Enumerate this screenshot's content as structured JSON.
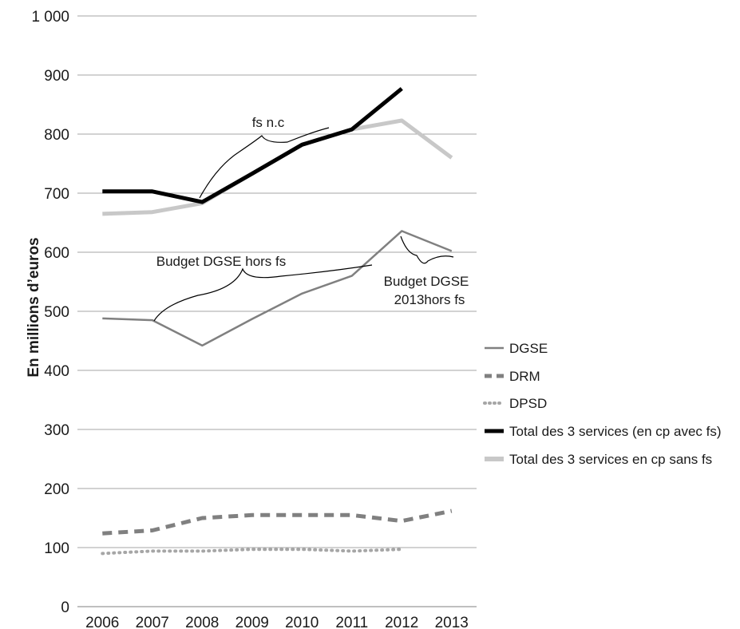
{
  "chart_data": {
    "type": "line",
    "title": "",
    "xlabel": "",
    "ylabel": "En millions d’euros",
    "ylim": [
      0,
      1000
    ],
    "ytick_step": 100,
    "ytick_labels": [
      "0",
      "100",
      "200",
      "300",
      "400",
      "500",
      "600",
      "700",
      "800",
      "900",
      "1 000"
    ],
    "grid": "horizontal",
    "legend_position": "right",
    "categories": [
      "2006",
      "2007",
      "2008",
      "2009",
      "2010",
      "2011",
      "2012",
      "2013"
    ],
    "series": [
      {
        "name": "DGSE",
        "values": [
          488,
          485,
          442,
          487,
          530,
          560,
          636,
          602
        ],
        "color": "#808080",
        "style": "solid"
      },
      {
        "name": "DRM",
        "values": [
          124,
          129,
          150,
          155,
          155,
          155,
          145,
          162
        ],
        "color": "#808080",
        "style": "dashed"
      },
      {
        "name": "DPSD",
        "values": [
          90,
          94,
          94,
          97,
          97,
          94,
          97,
          null
        ],
        "color": "#a6a6a6",
        "style": "dotted"
      },
      {
        "name": "Total des 3 services (en cp avec fs)",
        "values": [
          703,
          703,
          685,
          733,
          782,
          808,
          877,
          null
        ],
        "color": "#000000",
        "style": "thick"
      },
      {
        "name": "Total des 3 services en cp sans fs",
        "values": [
          665,
          668,
          683,
          733,
          782,
          808,
          823,
          760
        ],
        "color": "#c8c8c8",
        "style": "thick"
      }
    ],
    "annotations": [
      {
        "text": "fs n.c"
      },
      {
        "text": "Budget DGSE hors fs"
      },
      {
        "text": "Budget DGSE"
      },
      {
        "text": "2013hors fs"
      }
    ]
  }
}
